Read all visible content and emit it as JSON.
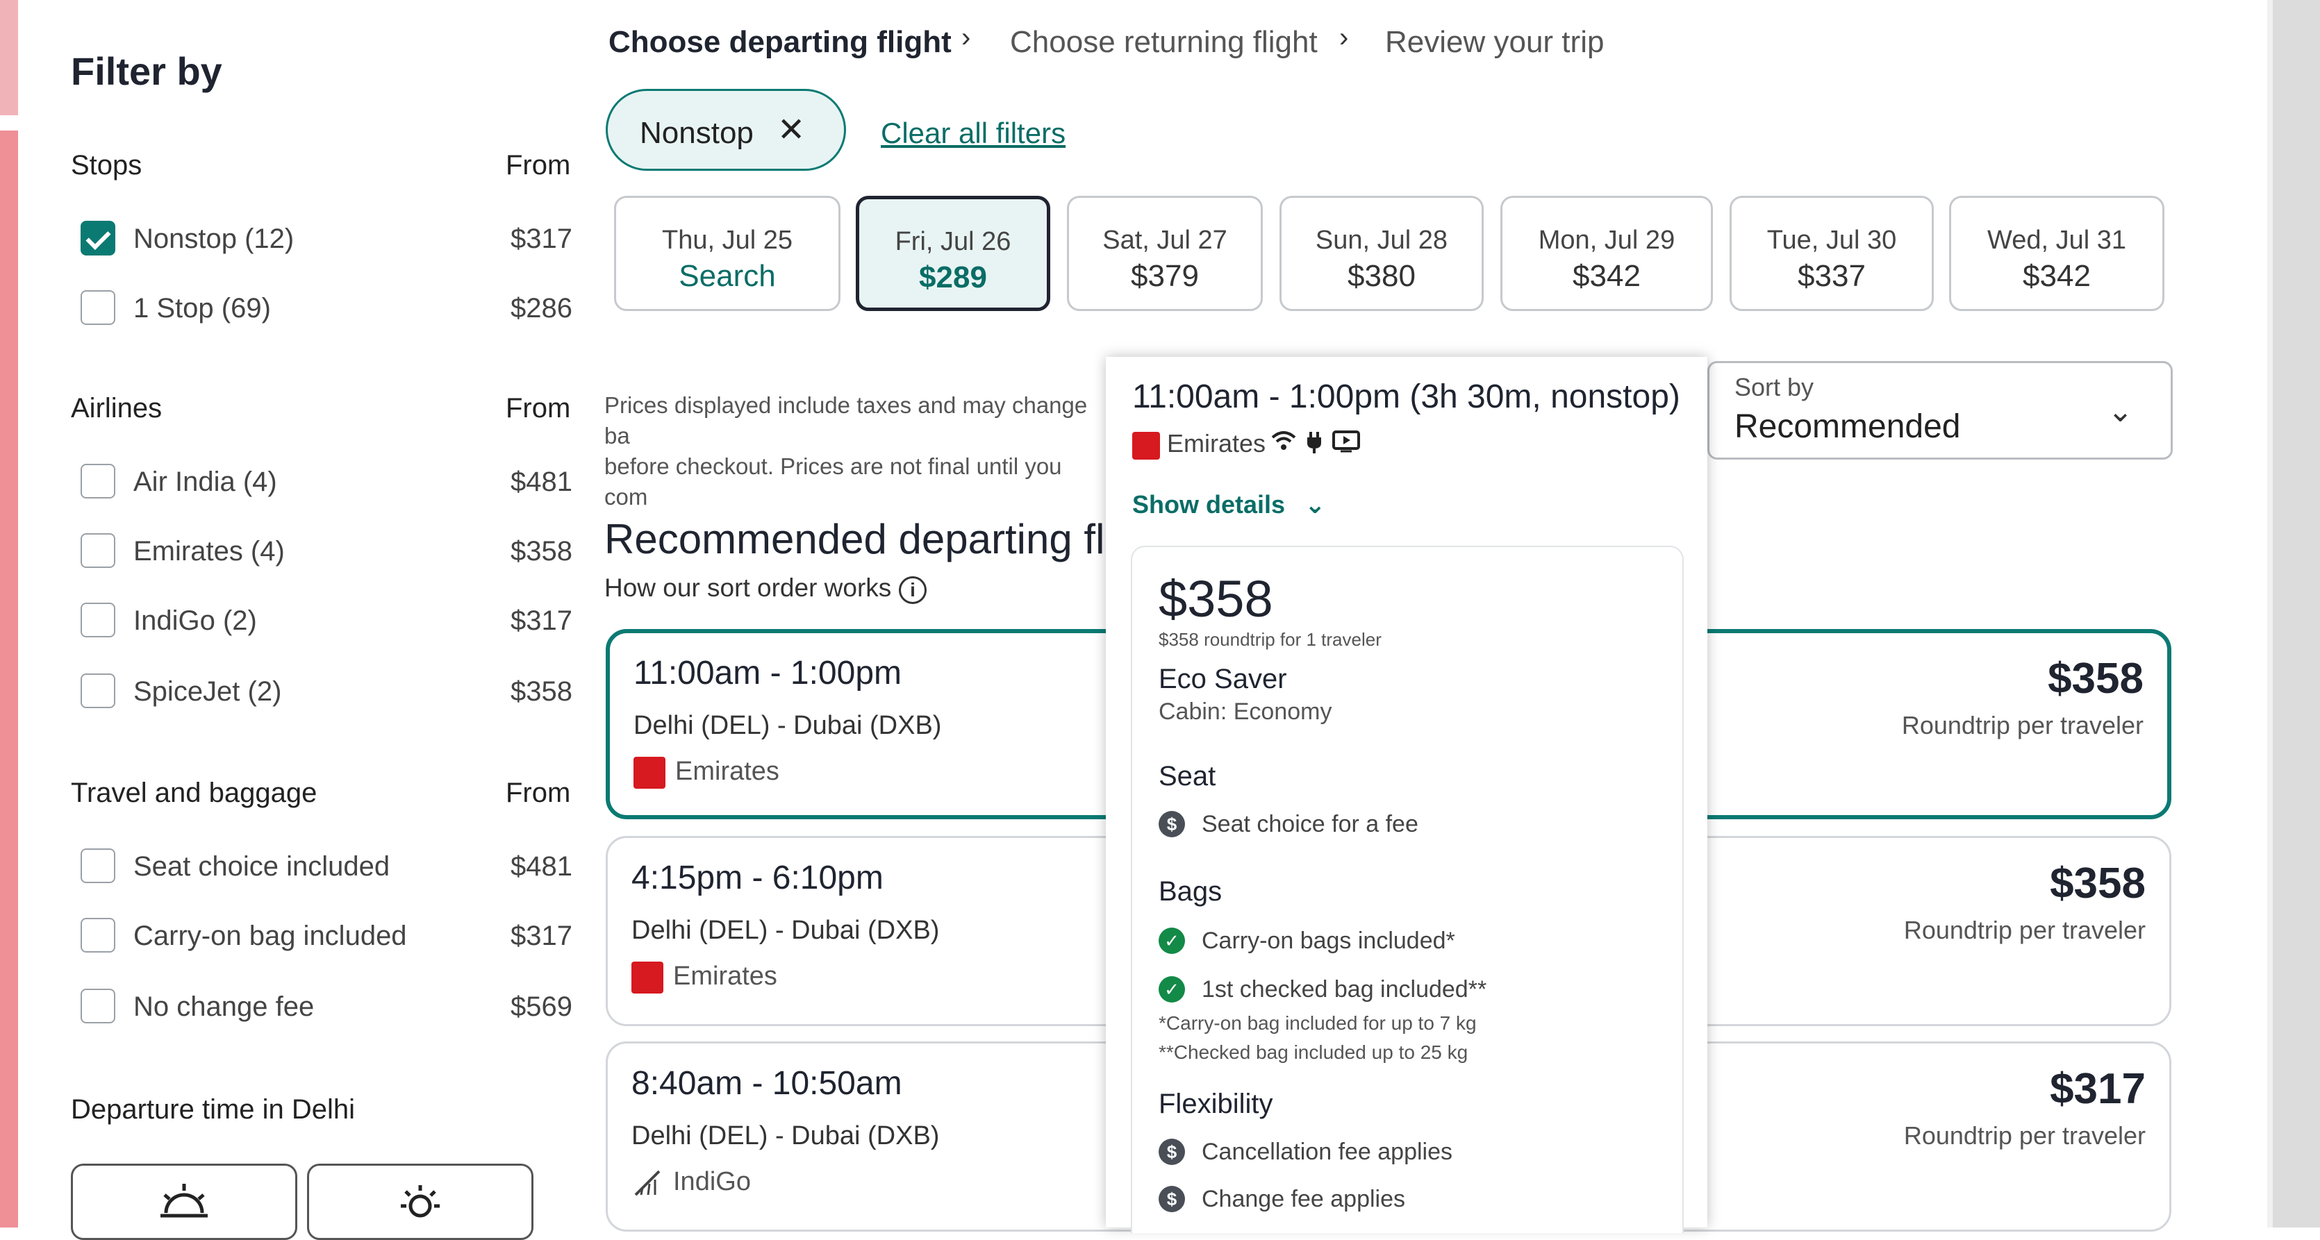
{
  "filters": {
    "title": "Filter by",
    "stops": {
      "label": "Stops",
      "from_label": "From",
      "items": [
        {
          "label": "Nonstop (12)",
          "price": "$317",
          "checked": true
        },
        {
          "label": "1 Stop (69)",
          "price": "$286",
          "checked": false
        }
      ]
    },
    "airlines": {
      "label": "Airlines",
      "from_label": "From",
      "items": [
        {
          "label": "Air India (4)",
          "price": "$481"
        },
        {
          "label": "Emirates (4)",
          "price": "$358"
        },
        {
          "label": "IndiGo (2)",
          "price": "$317"
        },
        {
          "label": "SpiceJet (2)",
          "price": "$358"
        }
      ]
    },
    "travel": {
      "label": "Travel and baggage",
      "from_label": "From",
      "items": [
        {
          "label": "Seat choice included",
          "price": "$481"
        },
        {
          "label": "Carry-on bag included",
          "price": "$317"
        },
        {
          "label": "No change fee",
          "price": "$569"
        }
      ]
    },
    "departure": {
      "label": "Departure time in Delhi",
      "icons": [
        "sunrise-icon",
        "sun-icon"
      ]
    }
  },
  "breadcrumb": {
    "step1": "Choose departing flight",
    "step2": "Choose returning flight",
    "step3": "Review your trip"
  },
  "active_filter": {
    "label": "Nonstop",
    "clear_label": "Clear all filters"
  },
  "dates": [
    {
      "day": "Thu, Jul 25",
      "price": "Search",
      "active": false
    },
    {
      "day": "Fri, Jul 26",
      "price": "$289",
      "active": true
    },
    {
      "day": "Sat, Jul 27",
      "price": "$379",
      "active": false
    },
    {
      "day": "Sun, Jul 28",
      "price": "$380",
      "active": false
    },
    {
      "day": "Mon, Jul 29",
      "price": "$342",
      "active": false
    },
    {
      "day": "Tue, Jul 30",
      "price": "$337",
      "active": false
    },
    {
      "day": "Wed, Jul 31",
      "price": "$342",
      "active": false
    }
  ],
  "disclaimer": {
    "line1": "Prices displayed include taxes and may change ba",
    "line2": "before checkout. Prices are not final until you com"
  },
  "sort": {
    "label": "Sort by",
    "value": "Recommended"
  },
  "results": {
    "title": "Recommended departing fli",
    "how_label": "How our sort order works",
    "flights": [
      {
        "time": "11:00am - 1:00pm",
        "route": "Delhi (DEL) - Dubai (DXB)",
        "airline": "Emirates",
        "price": "$358",
        "price_note": "Roundtrip per traveler"
      },
      {
        "time": "4:15pm - 6:10pm",
        "route": "Delhi (DEL) - Dubai (DXB)",
        "airline": "Emirates",
        "price": "$358",
        "price_note": "Roundtrip per traveler"
      },
      {
        "time": "8:40am - 10:50am",
        "route": "Delhi (DEL) - Dubai (DXB)",
        "airline": "IndiGo",
        "price": "$317",
        "price_note": "Roundtrip per traveler"
      }
    ]
  },
  "popover": {
    "time": "11:00am - 1:00pm (3h 30m, nonstop)",
    "airline": "Emirates",
    "amenities": [
      "wifi-icon",
      "power-icon",
      "entertainment-icon"
    ],
    "show_details": "Show details",
    "price": "$358",
    "price_note": "$358 roundtrip for 1 traveler",
    "fare_name": "Eco Saver",
    "cabin": "Cabin: Economy",
    "seat_heading": "Seat",
    "seat_item": "Seat choice for a fee",
    "bags_heading": "Bags",
    "bag_items": [
      "Carry-on bags included*",
      "1st checked bag included**"
    ],
    "bag_notes": [
      "*Carry-on bag included for up to 7 kg",
      "**Checked bag included up to 25 kg"
    ],
    "flex_heading": "Flexibility",
    "flex_items": [
      "Cancellation fee applies",
      "Change fee applies"
    ]
  }
}
